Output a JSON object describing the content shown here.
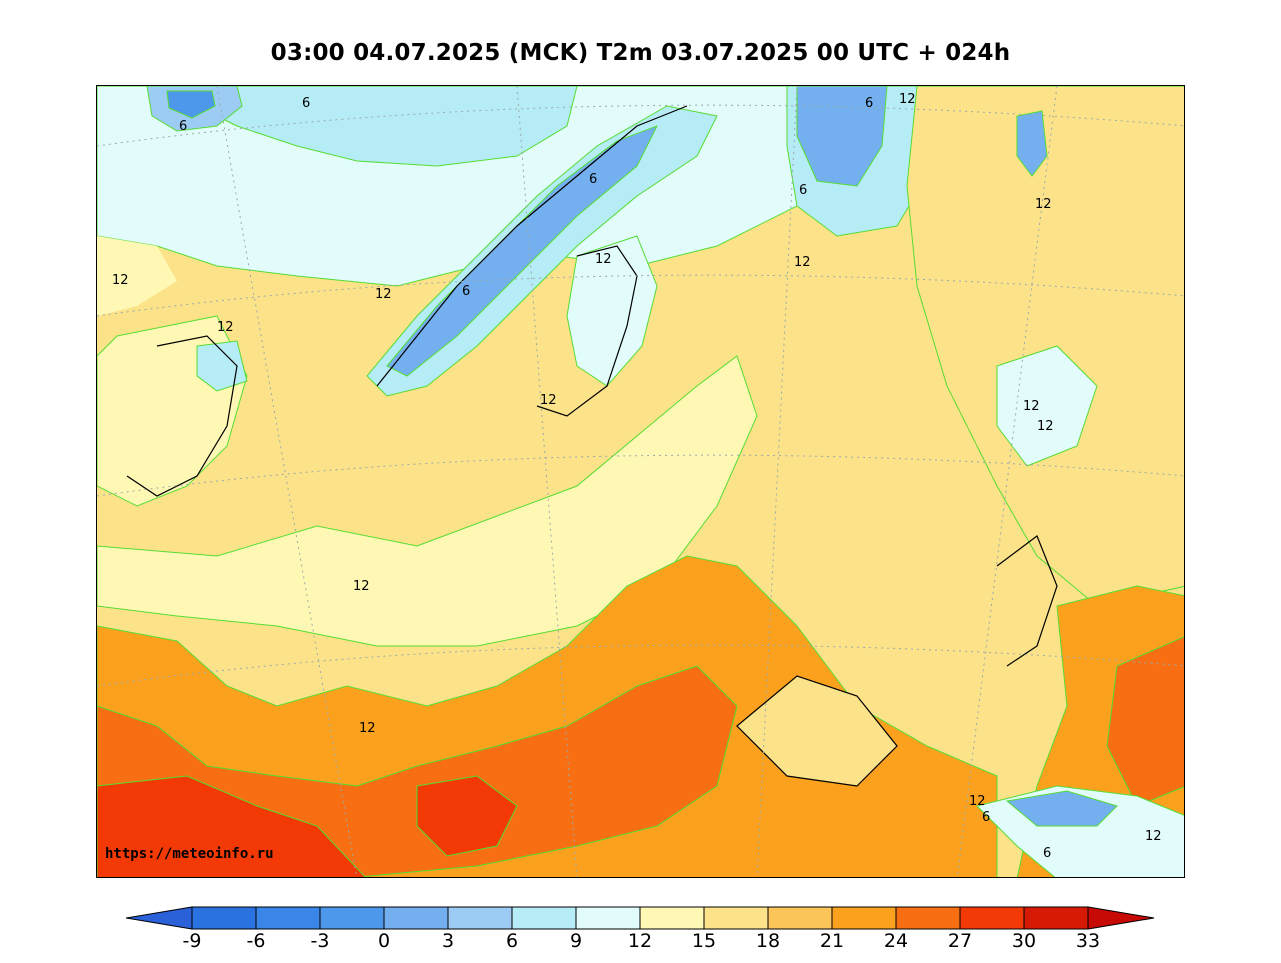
{
  "title": "03:00 04.07.2025 (MCK) T2m 03.07.2025 00 UTC + 024h",
  "watermark": "https://meteoinfo.ru",
  "colorbar": {
    "ticks": [
      "-9",
      "-6",
      "-3",
      "0",
      "3",
      "6",
      "9",
      "12",
      "15",
      "18",
      "21",
      "24",
      "27",
      "30",
      "33"
    ],
    "colors": [
      "#2a72e0",
      "#3a86e8",
      "#4e98ec",
      "#74b0f0",
      "#9ccbf4",
      "#b6ecf6",
      "#e2fbfb",
      "#fff8b4",
      "#fce38a",
      "#fcc55a",
      "#fba11e",
      "#f86e12",
      "#f33a06",
      "#d61a06"
    ],
    "low_color": "#2a60d8",
    "high_color": "#c80a06"
  },
  "contour_labels": [
    "6",
    "6",
    "12",
    "6",
    "6",
    "6",
    "12",
    "12",
    "12",
    "12",
    "12",
    "6",
    "12",
    "12",
    "12",
    "12",
    "12",
    "12",
    "12",
    "6",
    "6",
    "12"
  ]
}
